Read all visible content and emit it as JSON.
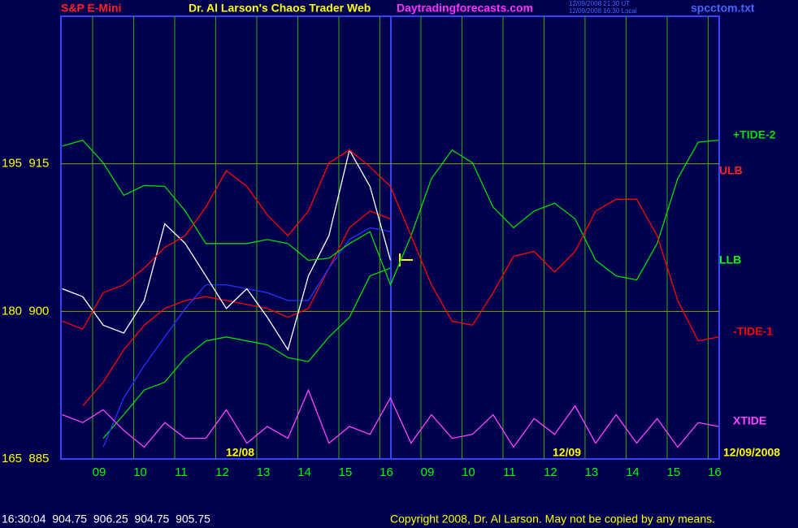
{
  "chart_data": {
    "type": "line",
    "symbol": "S&P E-Mini",
    "title": "Dr. Al Larson's Chaos Trader Web",
    "site": "Daytradingforecasts.com",
    "timestamps": [
      "12/09/2008 21:30 UT",
      "12/09/2008 16:30 Local"
    ],
    "file": "spcctom.txt",
    "status_line": "16:30:04  904.75  906.25  904.75  905.75",
    "copyright": "Copyright 2008, Dr. Al Larson. May not be copied by any means.",
    "annotations": [
      "ULB",
      "LLB",
      "12/08",
      "12/09",
      "12/09/2008"
    ],
    "xlim": [
      -0.93,
      15.11
    ],
    "ylim": [
      885,
      930
    ],
    "xticks": [
      {
        "value": 0,
        "label": "09"
      },
      {
        "value": 1,
        "label": "10"
      },
      {
        "value": 2,
        "label": "11"
      },
      {
        "value": 3,
        "label": "12"
      },
      {
        "value": 4,
        "label": "13"
      },
      {
        "value": 5,
        "label": "14"
      },
      {
        "value": 6,
        "label": "15"
      },
      {
        "value": 7,
        "label": "16"
      },
      {
        "value": 8,
        "label": "09"
      },
      {
        "value": 9,
        "label": "10"
      },
      {
        "value": 10,
        "label": "11"
      },
      {
        "value": 11,
        "label": "12"
      },
      {
        "value": 12,
        "label": "13"
      },
      {
        "value": 13,
        "label": "14"
      },
      {
        "value": 14,
        "label": "15"
      },
      {
        "value": 15,
        "label": "16"
      }
    ],
    "yticks": [
      {
        "value": 915,
        "label": "195  915"
      },
      {
        "value": 900,
        "label": "180  900"
      },
      {
        "value": 885,
        "label": "165  885"
      }
    ],
    "grid": true,
    "x": [
      -0.9,
      -0.4,
      0.1,
      0.6,
      1.1,
      1.6,
      2.1,
      2.6,
      3.1,
      3.6,
      4.1,
      4.6,
      5.1,
      5.6,
      6.1,
      6.6,
      7.1,
      7.6,
      8.1,
      8.6,
      9.1,
      9.6,
      10.1,
      10.6,
      11.1,
      11.6,
      12.1,
      12.6,
      13.1,
      13.6,
      14.1,
      14.6,
      15.1
    ],
    "series": [
      {
        "color": "#ff0000",
        "values": [
          null,
          890.4,
          892.8,
          896.1,
          898.6,
          900.3,
          901.1,
          901.5,
          901.1,
          900.7,
          900.3,
          899.4,
          900.3,
          904.4,
          908.5,
          910.2,
          909.4,
          null,
          null,
          null,
          null,
          null,
          null,
          null,
          null,
          null,
          null,
          null,
          null,
          null,
          null,
          null,
          null
        ]
      },
      {
        "color": "#00dd00",
        "values": [
          null,
          null,
          887.1,
          889.5,
          892.0,
          892.8,
          895.3,
          897.0,
          897.4,
          897.0,
          896.6,
          895.3,
          894.9,
          897.4,
          899.4,
          903.6,
          904.4,
          null,
          null,
          null,
          null,
          null,
          null,
          null,
          null,
          null,
          null,
          null,
          null,
          null,
          null,
          null,
          null
        ]
      },
      {
        "color": "#2233ff",
        "values": [
          null,
          null,
          886.2,
          891.2,
          894.5,
          897.4,
          900.3,
          902.7,
          902.7,
          902.3,
          901.9,
          901.1,
          901.1,
          904.4,
          907.3,
          908.5,
          908.1,
          null,
          null,
          null,
          null,
          null,
          null,
          null,
          null,
          null,
          null,
          null,
          null,
          null,
          null,
          null,
          null
        ]
      },
      {
        "color": "#ffffff",
        "values": [
          902.3,
          901.5,
          898.6,
          897.8,
          901.1,
          908.9,
          906.9,
          903.6,
          900.3,
          902.3,
          899.4,
          896.1,
          903.6,
          907.7,
          916.4,
          912.7,
          905.2,
          null,
          null,
          null,
          null,
          null,
          null,
          null,
          null,
          null,
          null,
          null,
          null,
          null,
          null,
          null,
          null
        ]
      },
      {
        "name": "+TIDE-2",
        "color": "#00dd00",
        "values": [
          916.8,
          917.4,
          915.1,
          911.8,
          912.8,
          912.7,
          910.2,
          906.9,
          906.9,
          906.9,
          907.3,
          906.9,
          905.2,
          905.4,
          906.9,
          908.1,
          902.7,
          907.7,
          913.5,
          916.4,
          915.1,
          910.6,
          908.5,
          910.2,
          911.0,
          909.4,
          905.2,
          903.6,
          903.2,
          906.9,
          913.5,
          917.2,
          917.4
        ]
      },
      {
        "name": "-TIDE-1",
        "color": "#ff0000",
        "values": [
          899.0,
          898.2,
          901.9,
          902.7,
          904.4,
          906.5,
          907.7,
          910.6,
          914.3,
          912.7,
          909.8,
          907.7,
          910.2,
          915.1,
          916.4,
          914.7,
          912.7,
          907.7,
          902.7,
          899.0,
          898.6,
          901.9,
          905.6,
          906.1,
          904.0,
          906.1,
          910.2,
          911.4,
          911.4,
          907.7,
          901.1,
          897.0,
          897.4
        ]
      },
      {
        "name": "XTIDE",
        "color": "#ff44ff",
        "values": [
          889.5,
          888.7,
          890.0,
          887.9,
          886.2,
          888.7,
          887.1,
          887.1,
          890.0,
          886.6,
          888.3,
          887.1,
          892.0,
          886.6,
          888.3,
          887.5,
          891.2,
          886.6,
          889.5,
          887.1,
          887.5,
          889.5,
          886.2,
          889.1,
          887.5,
          890.4,
          886.6,
          889.5,
          886.6,
          889.1,
          886.2,
          888.7,
          888.3
        ]
      }
    ]
  }
}
